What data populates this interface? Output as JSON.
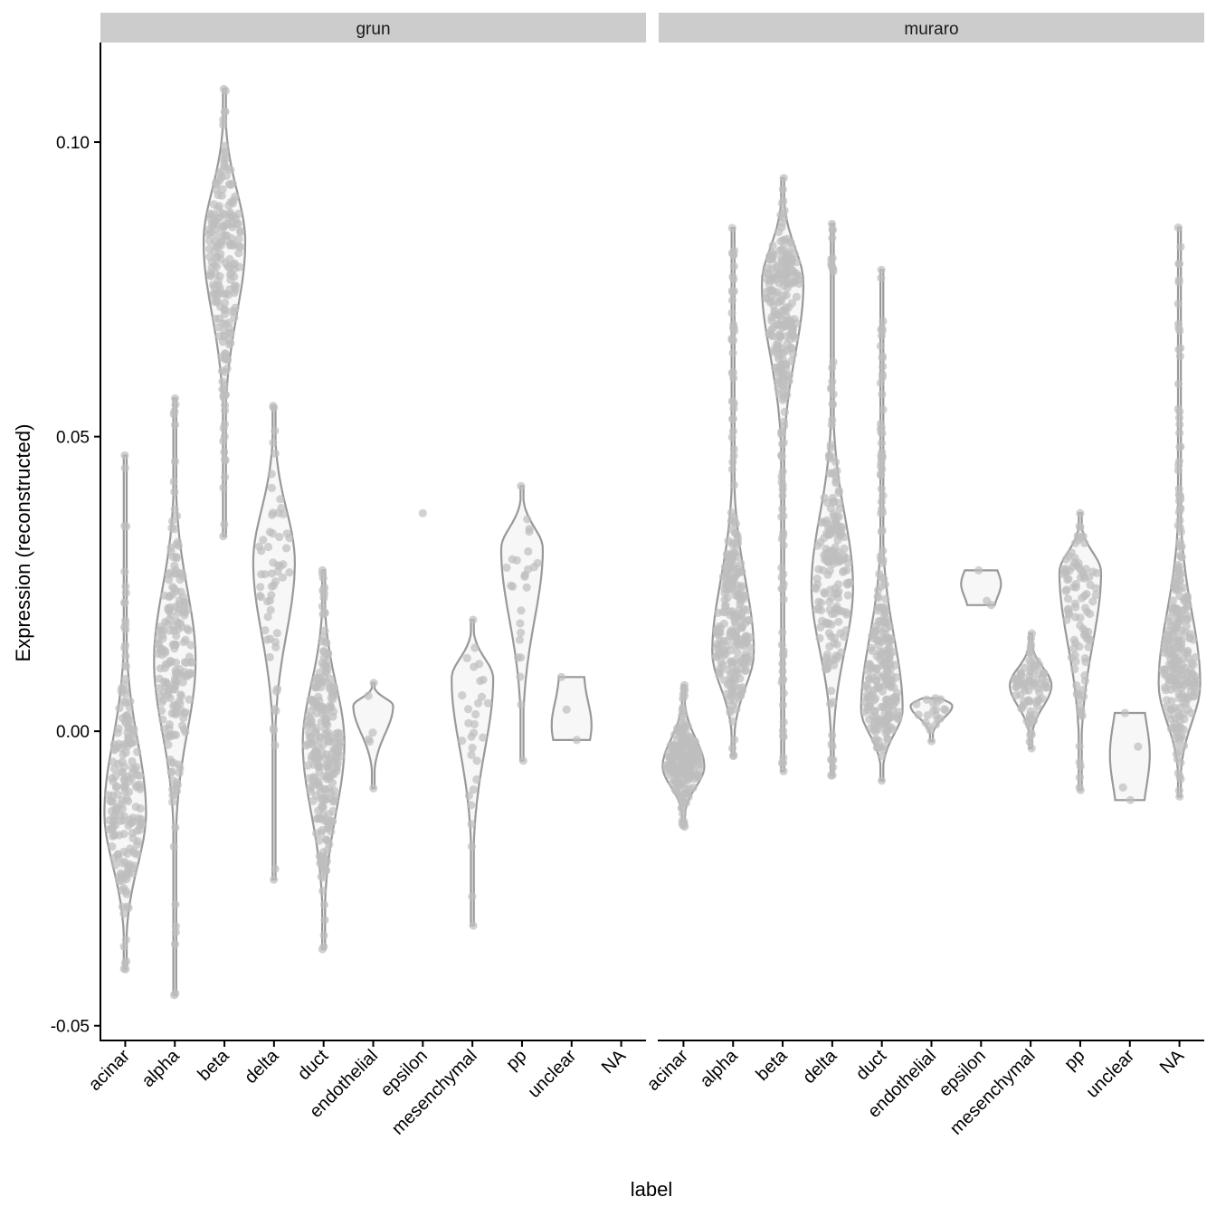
{
  "chart_data": {
    "type": "violin",
    "xlabel": "label",
    "ylabel": "Expression (reconstructed)",
    "ylim": [
      -0.052,
      0.117
    ],
    "yticks": [
      -0.05,
      0.0,
      0.05,
      0.1
    ],
    "ytick_labels": [
      "-0.05",
      "0.00",
      "0.05",
      "0.10"
    ],
    "grid": false,
    "categories": [
      "acinar",
      "alpha",
      "beta",
      "delta",
      "duct",
      "endothelial",
      "epsilon",
      "mesenchymal",
      "pp",
      "unclear",
      "NA"
    ],
    "colors": {
      "violin_stroke": "#999999",
      "violin_fill": "#f7f7f7",
      "points": "#bdbdbd",
      "strip": "#cccccc"
    },
    "facets": [
      {
        "name": "grun",
        "groups": [
          {
            "label": "acinar",
            "min": -0.0404,
            "mode": -0.0138,
            "max": 0.0468,
            "n": 200
          },
          {
            "label": "alpha",
            "min": -0.0448,
            "mode": 0.012,
            "max": 0.0565,
            "n": 200
          },
          {
            "label": "beta",
            "min": 0.0331,
            "mode": 0.083,
            "max": 0.109,
            "n": 200
          },
          {
            "label": "delta",
            "min": -0.0252,
            "mode": 0.0287,
            "max": 0.0552,
            "n": 60
          },
          {
            "label": "duct",
            "min": -0.037,
            "mode": -0.002,
            "max": 0.0273,
            "n": 300
          },
          {
            "label": "endothelial",
            "min": -0.0097,
            "mode": 0.0043,
            "max": 0.0082,
            "n": 6
          },
          {
            "label": "epsilon",
            "min": 0.037,
            "mode": 0.037,
            "max": 0.037,
            "n": 1
          },
          {
            "label": "mesenchymal",
            "min": -0.033,
            "mode": 0.009,
            "max": 0.0189,
            "n": 30
          },
          {
            "label": "pp",
            "min": -0.005,
            "mode": 0.031,
            "max": 0.0416,
            "n": 25
          },
          {
            "label": "unclear",
            "min": -0.0015,
            "mode": 0.001,
            "max": 0.0092,
            "n": 3
          }
        ]
      },
      {
        "name": "muraro",
        "groups": [
          {
            "label": "acinar",
            "min": -0.0162,
            "mode": -0.006,
            "max": 0.0078,
            "n": 200
          },
          {
            "label": "alpha",
            "min": -0.0042,
            "mode": 0.0134,
            "max": 0.0854,
            "n": 800
          },
          {
            "label": "beta",
            "min": -0.0068,
            "mode": 0.076,
            "max": 0.0939,
            "n": 450
          },
          {
            "label": "delta",
            "min": -0.0075,
            "mode": 0.0245,
            "max": 0.0861,
            "n": 190
          },
          {
            "label": "duct",
            "min": -0.0084,
            "mode": 0.0036,
            "max": 0.0783,
            "n": 240
          },
          {
            "label": "endothelial",
            "min": -0.0017,
            "mode": 0.0043,
            "max": 0.0056,
            "n": 20
          },
          {
            "label": "epsilon",
            "min": 0.0214,
            "mode": 0.025,
            "max": 0.0273,
            "n": 3
          },
          {
            "label": "mesenchymal",
            "min": -0.0029,
            "mode": 0.0078,
            "max": 0.0166,
            "n": 80
          },
          {
            "label": "pp",
            "min": -0.01,
            "mode": 0.027,
            "max": 0.037,
            "n": 100
          },
          {
            "label": "unclear",
            "min": -0.0117,
            "mode": -0.004,
            "max": 0.0031,
            "n": 4
          },
          {
            "label": "NA",
            "min": -0.0111,
            "mode": 0.008,
            "max": 0.0855,
            "n": 400
          }
        ]
      }
    ]
  }
}
